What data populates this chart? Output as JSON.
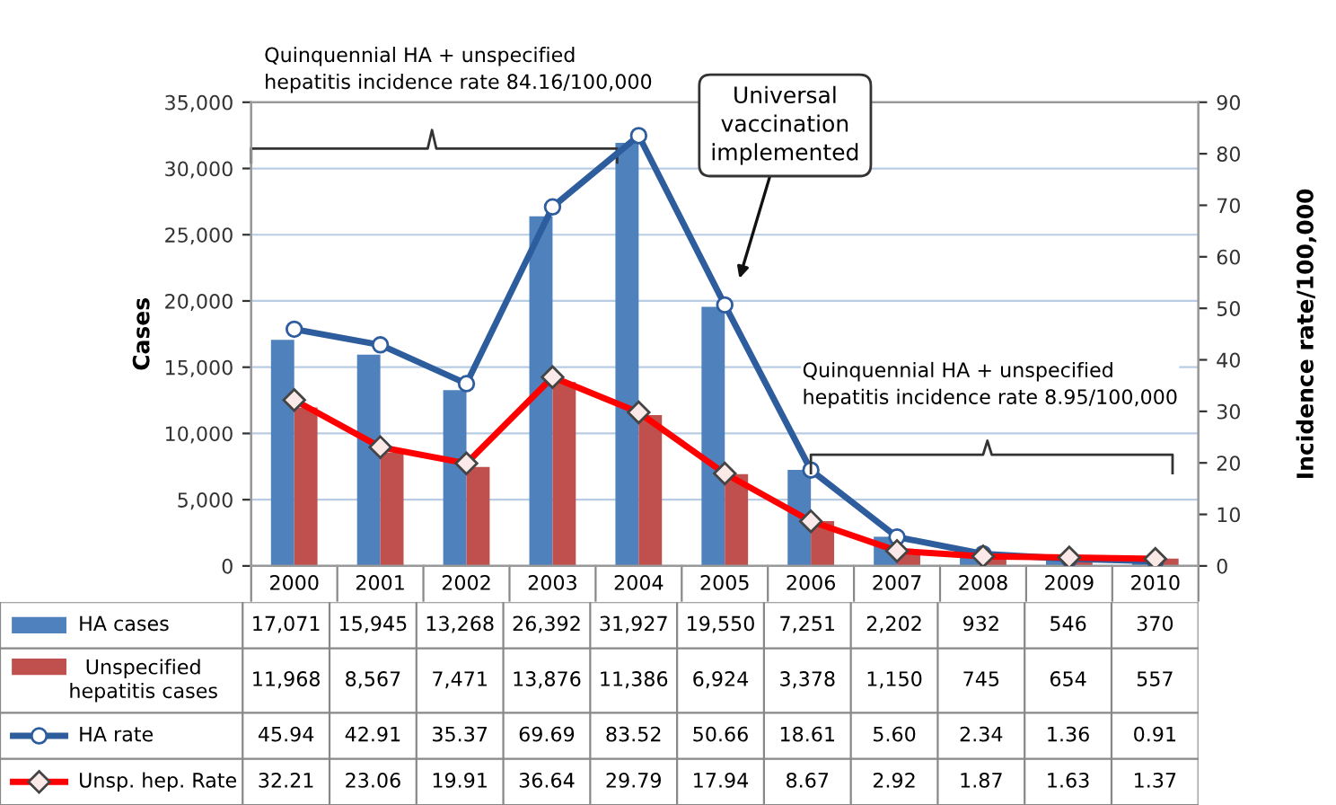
{
  "chart_data": {
    "type": "bar",
    "categories": [
      "2000",
      "2001",
      "2002",
      "2003",
      "2004",
      "2005",
      "2006",
      "2007",
      "2008",
      "2009",
      "2010"
    ],
    "ylabel": "Cases",
    "y2label": "Incidence rate/100,000",
    "ylim": [
      0,
      35000
    ],
    "yticks": [
      0,
      {
        "value": 5000,
        "label": "5,000"
      },
      {
        "value": 10000,
        "label": "10,000"
      },
      {
        "value": 15000,
        "label": "15,000"
      },
      {
        "value": 20000,
        "label": "20,000"
      },
      {
        "value": 25000,
        "label": "25,000"
      },
      {
        "value": 30000,
        "label": "30,000"
      },
      {
        "value": 35000,
        "label": "35,000"
      }
    ],
    "y2lim": [
      0,
      90
    ],
    "y2ticks": [
      0,
      10,
      20,
      30,
      40,
      50,
      60,
      70,
      80,
      90
    ],
    "grid": "y",
    "legend": "bottom",
    "series": [
      {
        "name": "HA cases",
        "type": "bar",
        "color": "#4f81bd",
        "values": [
          17071,
          15945,
          13268,
          26392,
          31927,
          19550,
          7251,
          2202,
          932,
          546,
          370
        ],
        "value_labels": [
          "17,071",
          "15,945",
          "13,268",
          "26,392",
          "31,927",
          "19,550",
          "7,251",
          "2,202",
          "932",
          "546",
          "370"
        ]
      },
      {
        "name": "Unspecified hepatitis cases",
        "type": "bar",
        "color": "#c0504d",
        "values": [
          11968,
          8567,
          7471,
          13876,
          11386,
          6924,
          3378,
          1150,
          745,
          654,
          557
        ],
        "value_labels": [
          "11,968",
          "8,567",
          "7,471",
          "13,876",
          "11,386",
          "6,924",
          "3,378",
          "1,150",
          "745",
          "654",
          "557"
        ]
      },
      {
        "name": "HA rate",
        "type": "line",
        "axis": "y2",
        "marker": "circle",
        "color": "#2e5d9e",
        "values": [
          45.94,
          42.91,
          35.37,
          69.69,
          83.52,
          50.66,
          18.61,
          5.6,
          2.34,
          1.36,
          0.91
        ],
        "value_labels": [
          "45.94",
          "42.91",
          "35.37",
          "69.69",
          "83.52",
          "50.66",
          "18.61",
          "5.60",
          "2.34",
          "1.36",
          "0.91"
        ]
      },
      {
        "name": "Unsp. hep. Rate",
        "type": "line",
        "axis": "y2",
        "marker": "diamond",
        "color": "#ff0000",
        "values": [
          32.21,
          23.06,
          19.91,
          36.64,
          29.79,
          17.94,
          8.67,
          2.92,
          1.87,
          1.63,
          1.37
        ],
        "value_labels": [
          "32.21",
          "23.06",
          "19.91",
          "36.64",
          "29.79",
          "17.94",
          "8.67",
          "2.92",
          "1.87",
          "1.63",
          "1.37"
        ]
      }
    ],
    "annotations": [
      "Quinquennial HA + unspecified\nhepatitis incidence rate 84.16/100,000",
      "Universal\nvaccination\nimplemented",
      "Quinquennial HA + unspecified\nhepatitis incidence rate 8.95/100,000"
    ]
  }
}
